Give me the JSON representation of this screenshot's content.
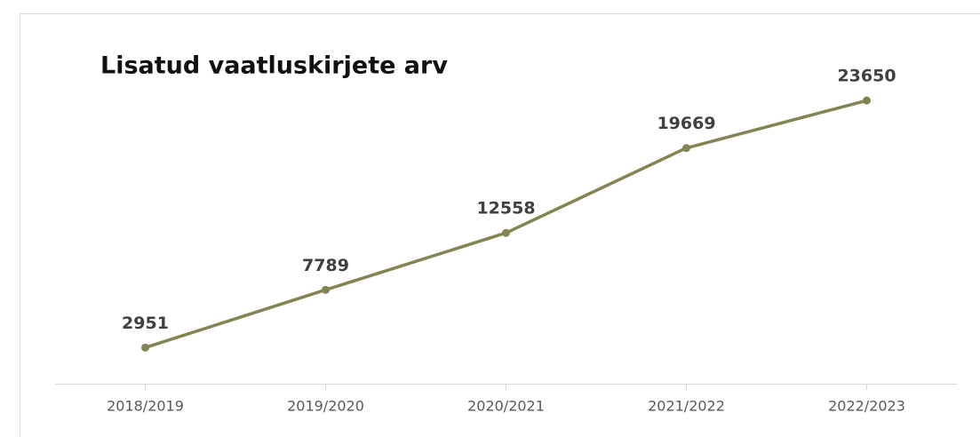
{
  "chart_data": {
    "type": "line",
    "title": "Lisatud vaatluskirjete arv",
    "categories": [
      "2018/2019",
      "2019/2020",
      "2020/2021",
      "2021/2022",
      "2022/2023"
    ],
    "series": [
      {
        "name": "Lisatud vaatluskirjete arv",
        "color": "#848452",
        "values": [
          2951,
          7789,
          12558,
          19669,
          23650
        ]
      }
    ],
    "ylim": [
      0,
      25000
    ]
  }
}
